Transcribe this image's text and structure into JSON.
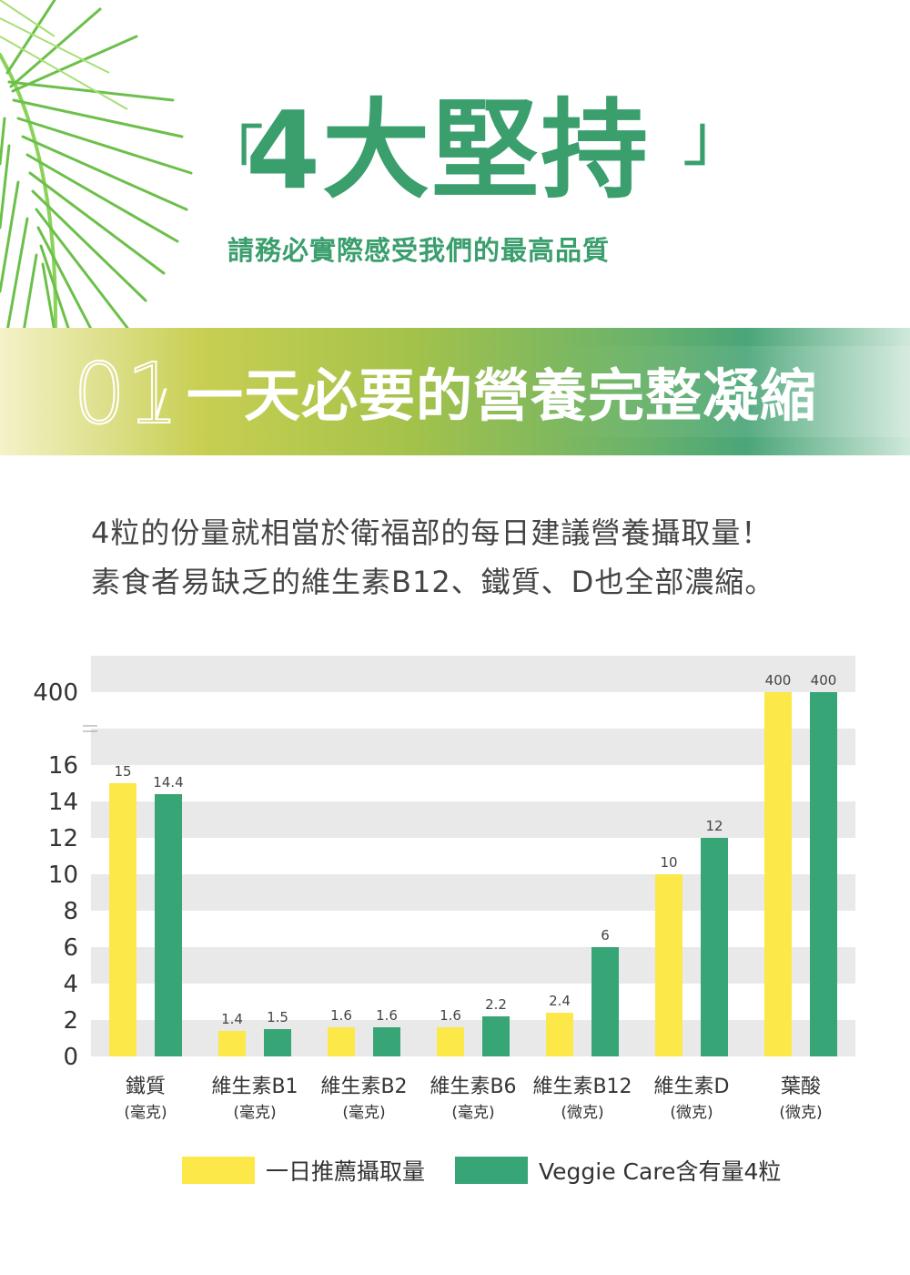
{
  "header": {
    "title": "4大堅持",
    "bracket_open": "「",
    "bracket_close": "」",
    "subtitle": "請務必實際感受我們的最高品質"
  },
  "section": {
    "number": "01",
    "slash": "/",
    "title": "一天必要的營養完整凝縮"
  },
  "intro": {
    "line1": "4粒的份量就相當於衛福部的每日建議營養攝取量！",
    "line2": "素食者易缺乏的維生素B12、鐵質、D也全部濃縮。"
  },
  "colors": {
    "brand_green": "#3a9e6d",
    "recommended": "#fde84a",
    "product": "#38a577",
    "stripe": "#e9e9e9"
  },
  "chart_data": {
    "type": "bar",
    "axis_break": true,
    "yticks": [
      "0",
      "2",
      "4",
      "6",
      "8",
      "10",
      "12",
      "14",
      "16",
      "400"
    ],
    "ylim": [
      0,
      16
    ],
    "break_value": 400,
    "categories": [
      {
        "name": "鐵質",
        "unit": "(毫克)"
      },
      {
        "name": "維生素B1",
        "unit": "(毫克)"
      },
      {
        "name": "維生素B2",
        "unit": "(毫克)"
      },
      {
        "name": "維生素B6",
        "unit": "(毫克)"
      },
      {
        "name": "維生素B12",
        "unit": "(微克)"
      },
      {
        "name": "維生素D",
        "unit": "(微克)"
      },
      {
        "name": "葉酸",
        "unit": "(微克)"
      }
    ],
    "series": [
      {
        "name": "一日推薦攝取量",
        "color": "#fde84a",
        "values": [
          15,
          1.4,
          1.6,
          1.6,
          2.4,
          10,
          400
        ],
        "labels": [
          "15",
          "1.4",
          "1.6",
          "1.6",
          "2.4",
          "10",
          "400"
        ]
      },
      {
        "name": "Veggie Care含有量4粒",
        "color": "#38a577",
        "values": [
          14.4,
          1.5,
          1.6,
          2.2,
          6,
          12,
          400
        ],
        "labels": [
          "14.4",
          "1.5",
          "1.6",
          "2.2",
          "6",
          "12",
          "400"
        ]
      }
    ],
    "legend_position": "bottom-center"
  }
}
